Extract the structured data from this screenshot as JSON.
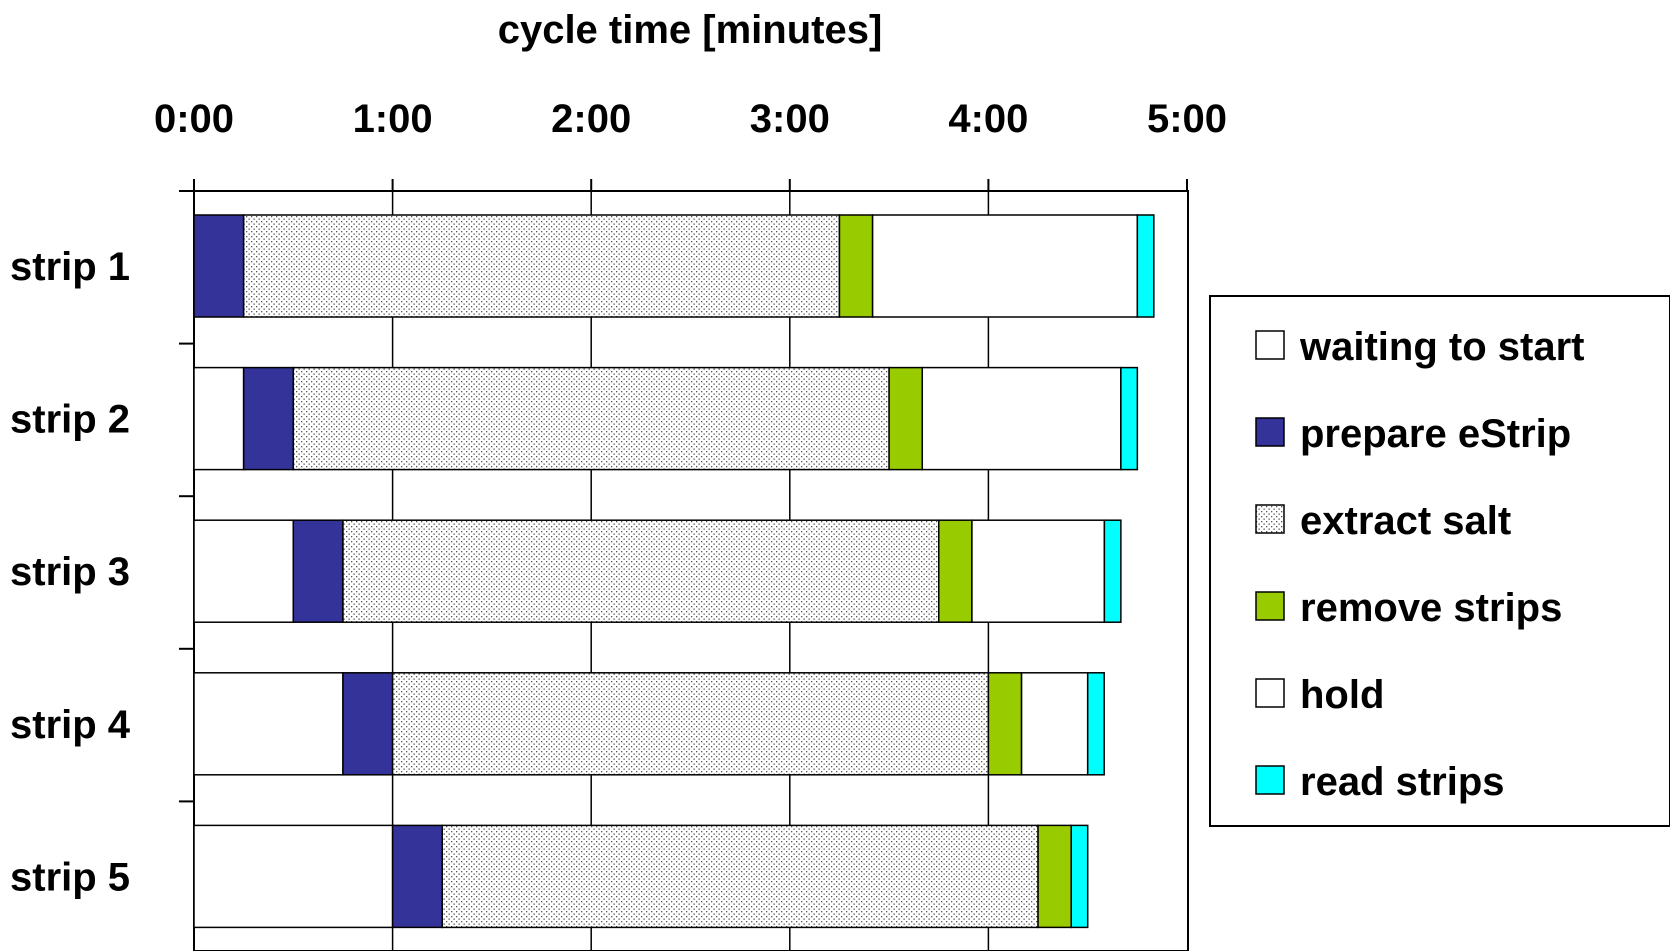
{
  "chart_data": {
    "type": "bar",
    "orientation": "horizontal",
    "stacked": true,
    "title": "cycle time [minutes]",
    "xlabel": "cycle time [minutes]",
    "ylabel": "",
    "xlim": [
      0,
      5
    ],
    "x_ticks": [
      "0:00",
      "1:00",
      "2:00",
      "3:00",
      "4:00",
      "5:00"
    ],
    "x_axis_position": "top",
    "grid": "vertical",
    "legend_position": "right",
    "categories": [
      "strip 1",
      "strip 2",
      "strip 3",
      "strip 4",
      "strip 5"
    ],
    "series": [
      {
        "name": "waiting to start",
        "color": "#ffffff",
        "pattern": "none",
        "values": [
          0,
          0.25,
          0.5,
          0.75,
          1.0
        ]
      },
      {
        "name": "prepare eStrip",
        "color": "#333399",
        "pattern": "none",
        "values": [
          0.25,
          0.25,
          0.25,
          0.25,
          0.25
        ]
      },
      {
        "name": "extract salt",
        "color": "#ffffff",
        "pattern": "dots",
        "values": [
          3.0,
          3.0,
          3.0,
          3.0,
          3.0
        ]
      },
      {
        "name": "remove strips",
        "color": "#99cc00",
        "pattern": "none",
        "values": [
          0.167,
          0.167,
          0.167,
          0.167,
          0.167
        ]
      },
      {
        "name": "hold",
        "color": "#ffffff",
        "pattern": "none",
        "values": [
          1.333,
          1.0,
          0.667,
          0.333,
          0
        ]
      },
      {
        "name": "read strips",
        "color": "#00ffff",
        "pattern": "none",
        "values": [
          0.083,
          0.083,
          0.083,
          0.083,
          0.083
        ]
      }
    ]
  }
}
